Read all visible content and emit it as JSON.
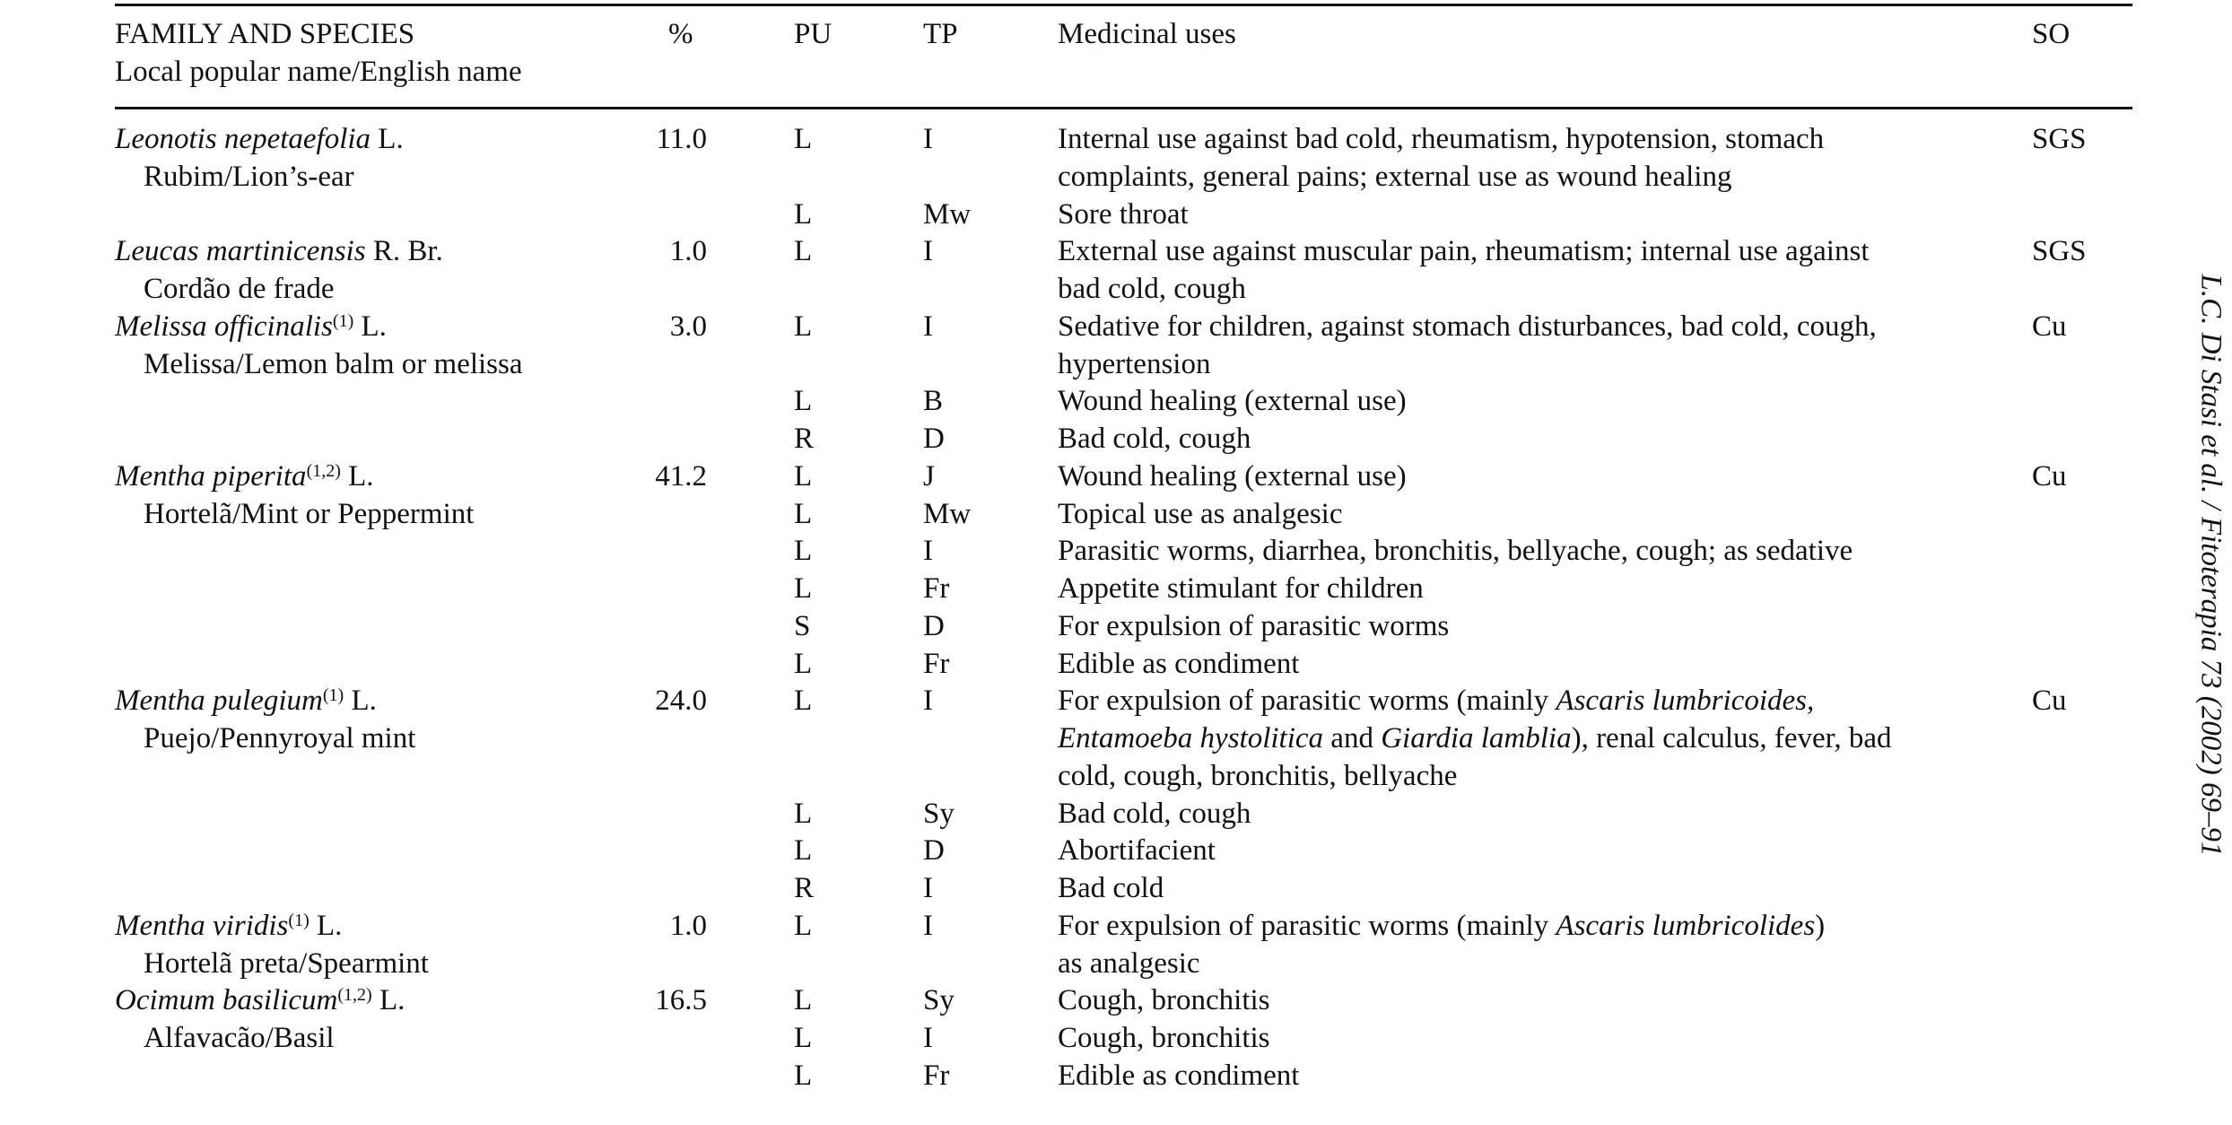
{
  "header": {
    "family": "FAMILY AND SPECIES",
    "local": "Local popular name/English name",
    "pct": "%",
    "pu": "PU",
    "tp": "TP",
    "uses": "Medicinal uses",
    "so": "SO"
  },
  "running_head": "L.C. Di Stasi et al. / Fitoterapia 73 (2002) 69–91",
  "rows": [
    {
      "species": "Leonotis nepetaefolia",
      "sup": "",
      "author": "L.",
      "local": "Rubim/Lion’s-ear",
      "pct": "11.0",
      "so": "SGS",
      "uses": [
        {
          "pu": "L",
          "tp": "I",
          "lines": [
            [
              {
                "t": "Internal use against bad cold, rheumatism, hypotension, stomach"
              }
            ],
            [
              {
                "t": "complaints, general pains; external use as wound healing"
              }
            ]
          ]
        },
        {
          "pu": "L",
          "tp": "Mw",
          "lines": [
            [
              {
                "t": "Sore throat"
              }
            ]
          ]
        }
      ]
    },
    {
      "species": "Leucas martinicensis",
      "sup": "",
      "author": "R. Br.",
      "local": "Cordão de frade",
      "pct": "1.0",
      "so": "SGS",
      "uses": [
        {
          "pu": "L",
          "tp": "I",
          "lines": [
            [
              {
                "t": "External use against muscular pain, rheumatism; internal use against"
              }
            ],
            [
              {
                "t": "bad cold, cough"
              }
            ]
          ]
        }
      ]
    },
    {
      "species": "Melissa officinalis",
      "sup": "(1)",
      "author": "L.",
      "local": "Melissa/Lemon balm or melissa",
      "pct": "3.0",
      "so": "Cu",
      "uses": [
        {
          "pu": "L",
          "tp": "I",
          "lines": [
            [
              {
                "t": "Sedative for children, against stomach disturbances, bad cold, cough,"
              }
            ],
            [
              {
                "t": "hypertension"
              }
            ]
          ]
        },
        {
          "pu": "L",
          "tp": "B",
          "lines": [
            [
              {
                "t": "Wound healing (external use)"
              }
            ]
          ]
        },
        {
          "pu": "R",
          "tp": "D",
          "lines": [
            [
              {
                "t": "Bad cold, cough"
              }
            ]
          ]
        }
      ]
    },
    {
      "species": "Mentha piperita",
      "sup": "(1,2)",
      "author": "L.",
      "local": "Hortelã/Mint or Peppermint",
      "pct": "41.2",
      "so": "Cu",
      "uses": [
        {
          "pu": "L",
          "tp": "J",
          "lines": [
            [
              {
                "t": "Wound healing (external use)"
              }
            ]
          ]
        },
        {
          "pu": "L",
          "tp": "Mw",
          "lines": [
            [
              {
                "t": "Topical use as analgesic"
              }
            ]
          ]
        },
        {
          "pu": "L",
          "tp": "I",
          "lines": [
            [
              {
                "t": "Parasitic worms, diarrhea, bronchitis, bellyache, cough; as sedative"
              }
            ]
          ]
        },
        {
          "pu": "L",
          "tp": "Fr",
          "lines": [
            [
              {
                "t": "Appetite stimulant for children"
              }
            ]
          ]
        },
        {
          "pu": "S",
          "tp": "D",
          "lines": [
            [
              {
                "t": "For expulsion of parasitic worms"
              }
            ]
          ]
        },
        {
          "pu": "L",
          "tp": "Fr",
          "lines": [
            [
              {
                "t": "Edible as condiment"
              }
            ]
          ]
        }
      ]
    },
    {
      "species": "Mentha pulegium",
      "sup": "(1)",
      "author": "L.",
      "local": "Puejo/Pennyroyal mint",
      "pct": "24.0",
      "so": "Cu",
      "uses": [
        {
          "pu": "L",
          "tp": "I",
          "lines": [
            [
              {
                "t": "For expulsion of parasitic worms (mainly "
              },
              {
                "t": "Ascaris lumbricoides,",
                "i": true
              }
            ],
            [
              {
                "t": "Entamoeba hystolitica",
                "i": true
              },
              {
                "t": " and "
              },
              {
                "t": "Giardia lamblia",
                "i": true
              },
              {
                "t": "), renal calculus, fever, bad"
              }
            ],
            [
              {
                "t": "cold, cough, bronchitis, bellyache"
              }
            ]
          ]
        },
        {
          "pu": "L",
          "tp": "Sy",
          "lines": [
            [
              {
                "t": "Bad cold, cough"
              }
            ]
          ]
        },
        {
          "pu": "L",
          "tp": "D",
          "lines": [
            [
              {
                "t": "Abortifacient"
              }
            ]
          ]
        },
        {
          "pu": "R",
          "tp": "I",
          "lines": [
            [
              {
                "t": "Bad cold"
              }
            ]
          ]
        }
      ]
    },
    {
      "species": "Mentha viridis",
      "sup": "(1)",
      "author": "L.",
      "local": "Hortelã preta/Spearmint",
      "pct": "1.0",
      "so": "",
      "uses": [
        {
          "pu": "L",
          "tp": "I",
          "lines": [
            [
              {
                "t": "For expulsion of parasitic worms (mainly "
              },
              {
                "t": "Ascaris lumbricolides",
                "i": true
              },
              {
                "t": ")"
              }
            ],
            [
              {
                "t": "as analgesic"
              }
            ]
          ]
        }
      ]
    },
    {
      "species": "Ocimum basilicum",
      "sup": "(1,2)",
      "author": "L.",
      "local": "Alfavacão/Basil",
      "pct": "16.5",
      "so": "",
      "uses": [
        {
          "pu": "L",
          "tp": "Sy",
          "lines": [
            [
              {
                "t": "Cough, bronchitis"
              }
            ]
          ]
        },
        {
          "pu": "L",
          "tp": "I",
          "lines": [
            [
              {
                "t": "Cough, bronchitis"
              }
            ]
          ]
        },
        {
          "pu": "L",
          "tp": "Fr",
          "lines": [
            [
              {
                "t": "Edible as condiment"
              }
            ]
          ]
        }
      ]
    }
  ]
}
